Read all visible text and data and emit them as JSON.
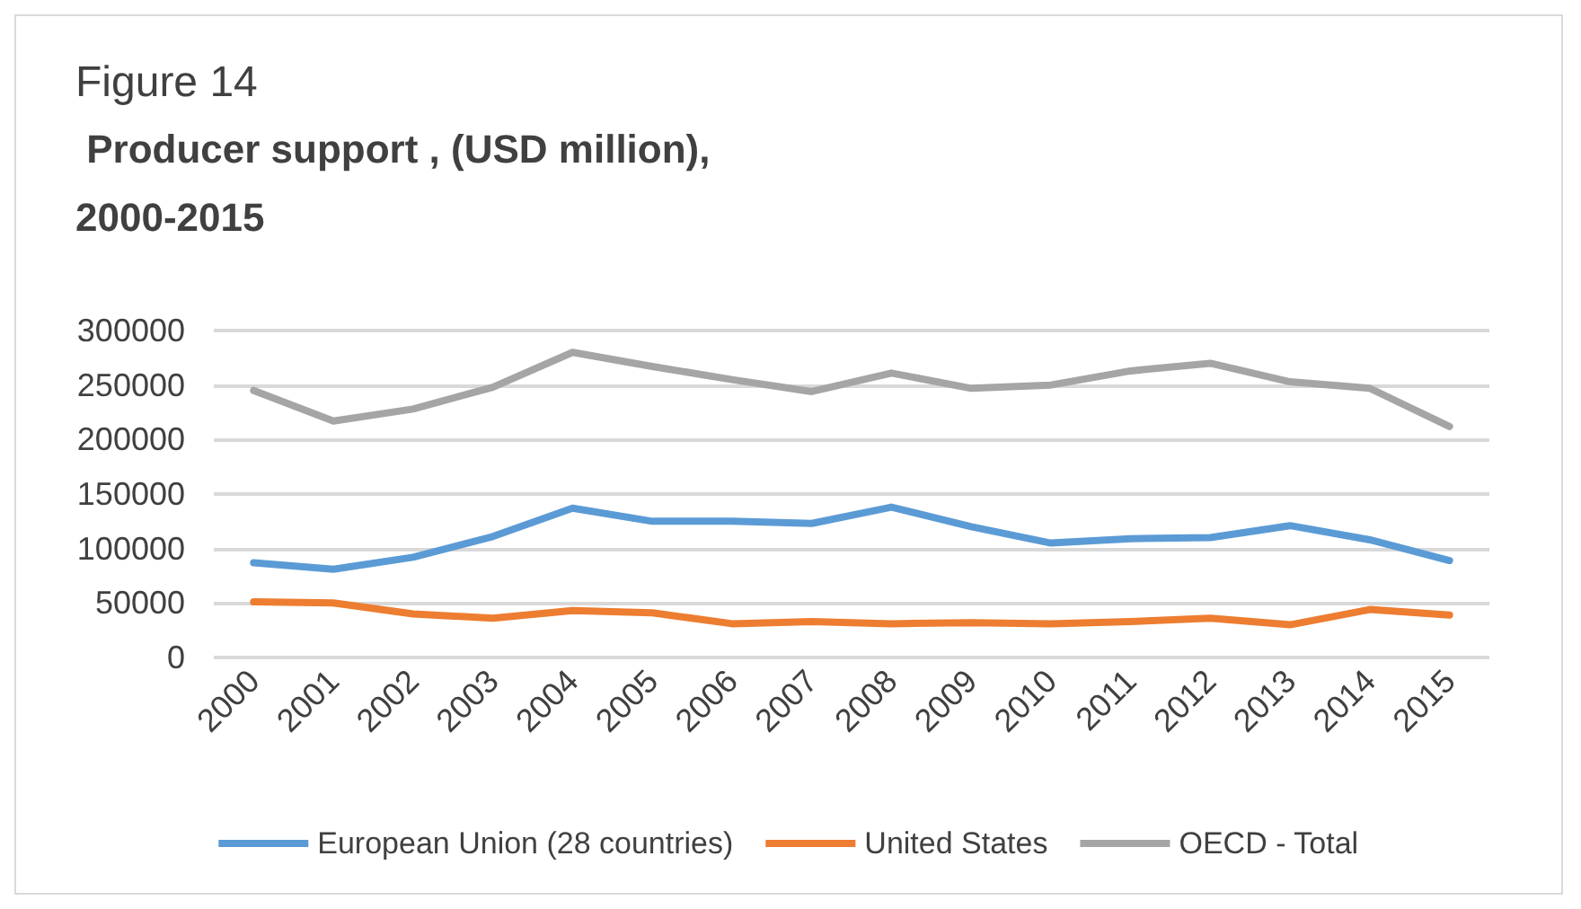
{
  "chart_data": {
    "type": "line",
    "title": "Figure 14",
    "subtitle": " Producer support , (USD million),\n2000-2015",
    "categories": [
      "2000",
      "2001",
      "2002",
      "2003",
      "2004",
      "2005",
      "2006",
      "2007",
      "2008",
      "2009",
      "2010",
      "2011",
      "2012",
      "2013",
      "2014",
      "2015"
    ],
    "series": [
      {
        "name": "European Union (28 countries)",
        "color": "#5b9bd5",
        "values": [
          87000,
          81000,
          92000,
          111000,
          137000,
          125000,
          125000,
          123000,
          138000,
          120000,
          105000,
          109000,
          110000,
          121000,
          108000,
          89000
        ]
      },
      {
        "name": "United States",
        "color": "#ed7d31",
        "values": [
          51000,
          50000,
          40000,
          36000,
          43000,
          41000,
          31000,
          33000,
          31000,
          32000,
          31000,
          33000,
          36000,
          30000,
          44000,
          39000
        ]
      },
      {
        "name": "OECD - Total",
        "color": "#a5a5a5",
        "values": [
          245000,
          217000,
          228000,
          248000,
          280000,
          267000,
          255000,
          244000,
          261000,
          247000,
          250000,
          263000,
          270000,
          253000,
          247000,
          212000
        ]
      }
    ],
    "ylim": [
      0,
      300000
    ],
    "yticks": [
      0,
      50000,
      100000,
      150000,
      200000,
      250000,
      300000
    ],
    "grid": "y",
    "legend": "bottom",
    "marker": "none",
    "line_style": "solid"
  }
}
